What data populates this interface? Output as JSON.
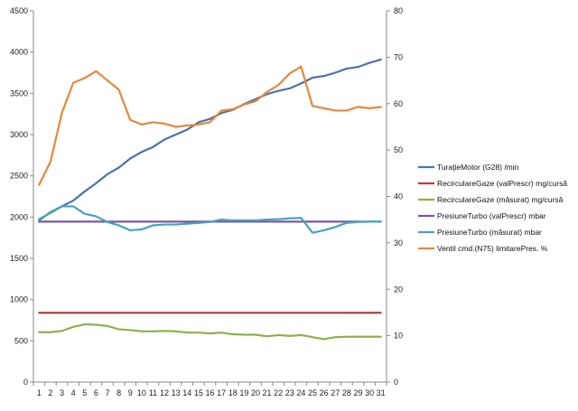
{
  "chart_data": {
    "type": "line",
    "title": "",
    "x": [
      1,
      2,
      3,
      4,
      5,
      6,
      7,
      8,
      9,
      10,
      11,
      12,
      13,
      14,
      15,
      16,
      17,
      18,
      19,
      20,
      21,
      22,
      23,
      24,
      25,
      26,
      27,
      28,
      29,
      30,
      31
    ],
    "ylim_left": [
      0,
      4500
    ],
    "yticks_left": [
      0,
      500,
      1000,
      1500,
      2000,
      2500,
      3000,
      3500,
      4000,
      4500
    ],
    "ylim_right": [
      0,
      80
    ],
    "yticks_right": [
      0,
      10,
      20,
      30,
      40,
      50,
      60,
      70,
      80
    ],
    "gridlines": false,
    "legend_position": "right",
    "series": [
      {
        "name": "TuraţieMotor (G28)  /min",
        "axis": "left",
        "color": "#4a73ad",
        "values": [
          1960,
          2060,
          2130,
          2200,
          2310,
          2410,
          2520,
          2600,
          2710,
          2790,
          2850,
          2940,
          3000,
          3060,
          3150,
          3190,
          3260,
          3300,
          3370,
          3430,
          3490,
          3530,
          3560,
          3620,
          3690,
          3710,
          3750,
          3800,
          3820,
          3870,
          3910
        ]
      },
      {
        "name": "RecirculareGaze (valPrescr)  mg/cursă",
        "axis": "left",
        "color": "#b8403c",
        "values": [
          840,
          840,
          840,
          840,
          840,
          840,
          840,
          840,
          840,
          840,
          840,
          840,
          840,
          840,
          840,
          840,
          840,
          840,
          840,
          840,
          840,
          840,
          840,
          840,
          840,
          840,
          840,
          840,
          840,
          840,
          840
        ]
      },
      {
        "name": "RecirculareGaze (măsurat)  mg/cursă",
        "axis": "left",
        "color": "#8db04c",
        "values": [
          605,
          605,
          620,
          670,
          700,
          695,
          680,
          640,
          630,
          615,
          615,
          620,
          615,
          600,
          600,
          590,
          600,
          580,
          575,
          575,
          555,
          570,
          560,
          570,
          545,
          520,
          545,
          550,
          550,
          550,
          550
        ]
      },
      {
        "name": "PresiuneTurbo (valPrescr)  mbar",
        "axis": "left",
        "color": "#7859a0",
        "values": [
          1945,
          1945,
          1945,
          1945,
          1945,
          1945,
          1945,
          1945,
          1945,
          1945,
          1945,
          1945,
          1945,
          1945,
          1945,
          1945,
          1945,
          1945,
          1945,
          1945,
          1945,
          1945,
          1945,
          1945,
          1945,
          1945,
          1945,
          1945,
          1945,
          1945,
          1945
        ]
      },
      {
        "name": "PresiuneTurbo (măsurat)  mbar",
        "axis": "left",
        "color": "#46a3bd",
        "values": [
          1975,
          2050,
          2130,
          2130,
          2040,
          2010,
          1940,
          1900,
          1840,
          1850,
          1900,
          1910,
          1910,
          1920,
          1930,
          1940,
          1970,
          1960,
          1960,
          1960,
          1970,
          1975,
          1985,
          1990,
          1810,
          1840,
          1880,
          1930,
          1940,
          1945,
          1945
        ]
      },
      {
        "name": "Ventil cmd.(N75) limitarePres.  %",
        "axis": "right",
        "color": "#e8873a",
        "values": [
          42.5,
          47.5,
          58,
          64.5,
          65.5,
          67,
          65,
          63,
          56.5,
          55.5,
          56,
          55.7,
          55,
          55.3,
          55.5,
          56,
          58.5,
          58.8,
          59.8,
          60.5,
          62.5,
          64,
          66.5,
          68,
          59.5,
          59,
          58.5,
          58.5,
          59.3,
          59,
          59.3
        ]
      }
    ]
  }
}
